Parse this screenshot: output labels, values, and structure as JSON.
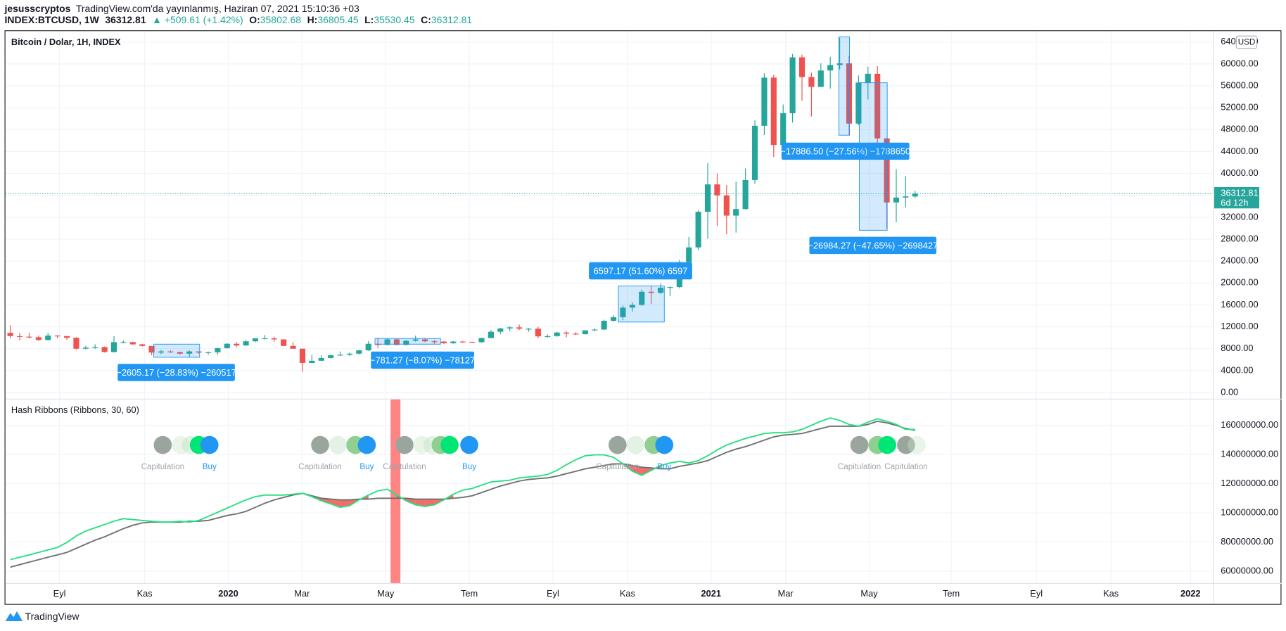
{
  "header": {
    "user": "jesusscryptos",
    "published": "TradingView.com'da yayınlanmış, Haziran 07, 2021 15:10:36 +03",
    "symbol": "INDEX:BTCUSD, 1W",
    "change": "▲ +509.61 (+1.42%)",
    "ohlc_labels": [
      "O:",
      "H:",
      "L:",
      "C:"
    ]
  },
  "footer": {
    "brand": "TradingView"
  },
  "chart_data": [
    {
      "type": "candlestick",
      "title": "Bitcoin / Dolar, 1H, INDEX",
      "currency": "USD",
      "countdown": "6d 12h",
      "up_color": "#26a69a",
      "down_color": "#ef5350",
      "grid": true,
      "open": [
        10900,
        10300,
        10200,
        10100,
        9600,
        10400,
        10300,
        10000,
        8000,
        8200,
        8300,
        7400,
        9200,
        9200,
        8800,
        8500,
        7300,
        7500,
        7400,
        7100,
        7500,
        7300,
        7350,
        8100,
        8900,
        8600,
        9350,
        9900,
        9900,
        9700,
        8500,
        8000,
        5400,
        5800,
        6300,
        6800,
        6900,
        7100,
        7700,
        8900,
        8700,
        9700,
        8700,
        9450,
        9700,
        9350,
        9300,
        9000,
        9300,
        9250,
        9200,
        9950,
        11100,
        11700,
        11900,
        11650,
        11650,
        10250,
        10300,
        10950,
        10750,
        10650,
        11350,
        11500,
        13100,
        13750,
        15500,
        16000,
        18400,
        18200,
        19150,
        19250,
        23800,
        26500,
        33000,
        38000,
        36000,
        32300,
        33500,
        38800,
        48700,
        57500,
        45200,
        51000,
        61200,
        57600,
        55800,
        58800,
        59800,
        60100,
        49100,
        56600,
        58200,
        46400,
        34700,
        35600,
        35802.68
      ],
      "high": [
        12300,
        10900,
        10900,
        10400,
        10900,
        10500,
        10300,
        10100,
        8500,
        8800,
        8400,
        10300,
        9500,
        9300,
        8900,
        8500,
        7800,
        7700,
        7400,
        7700,
        7500,
        7500,
        8200,
        9000,
        9200,
        9600,
        9900,
        10500,
        10200,
        9700,
        9200,
        8000,
        6900,
        6800,
        7000,
        7500,
        7300,
        7800,
        9400,
        10000,
        9900,
        9900,
        9600,
        10400,
        9900,
        9600,
        9400,
        9400,
        9400,
        9300,
        10000,
        11400,
        11800,
        12100,
        12400,
        11800,
        12000,
        10600,
        11100,
        11200,
        11000,
        11400,
        11700,
        13300,
        14100,
        15900,
        16500,
        18800,
        19500,
        19900,
        19400,
        24200,
        28400,
        33300,
        41900,
        40000,
        37900,
        38500,
        40900,
        49700,
        58300,
        58000,
        52600,
        61800,
        61700,
        58400,
        60100,
        61300,
        64800,
        61500,
        57900,
        59500,
        59600,
        46500,
        40800,
        39500,
        36805.45
      ],
      "low": [
        9900,
        9500,
        9900,
        9400,
        9500,
        9900,
        9600,
        7800,
        7900,
        8000,
        7300,
        7300,
        9000,
        8700,
        8400,
        6800,
        7000,
        7200,
        6900,
        6500,
        7100,
        6900,
        6900,
        8000,
        8300,
        8500,
        9200,
        9700,
        9300,
        8500,
        8000,
        3800,
        5300,
        5800,
        6200,
        6700,
        6700,
        6900,
        7600,
        8100,
        8600,
        8600,
        8600,
        9300,
        9200,
        8900,
        8900,
        8900,
        9100,
        9100,
        9100,
        9900,
        10700,
        11200,
        11400,
        11100,
        9900,
        10000,
        10200,
        10100,
        10500,
        10600,
        11200,
        11400,
        12900,
        13200,
        14800,
        15800,
        16200,
        18000,
        17600,
        19000,
        22000,
        26000,
        28100,
        30400,
        28900,
        29200,
        33400,
        38100,
        47000,
        43000,
        44900,
        49300,
        53300,
        50400,
        55800,
        55500,
        59000,
        47000,
        48800,
        53500,
        43800,
        30000,
        31100,
        33800,
        35530.45
      ],
      "close": [
        10300,
        10200,
        10100,
        9600,
        10400,
        10300,
        10000,
        8000,
        8200,
        8300,
        7400,
        9200,
        9200,
        8800,
        8500,
        7300,
        7500,
        7400,
        7100,
        7500,
        7300,
        7350,
        8100,
        8900,
        8600,
        9350,
        9900,
        9900,
        9700,
        8500,
        8000,
        5400,
        5800,
        6300,
        6800,
        6900,
        7100,
        7700,
        8900,
        8700,
        9700,
        8700,
        9450,
        9700,
        9350,
        9300,
        9000,
        9300,
        9250,
        9200,
        9950,
        11100,
        11700,
        11900,
        11650,
        11650,
        10250,
        10300,
        10950,
        10750,
        10650,
        11350,
        11500,
        13100,
        13750,
        15500,
        16000,
        18400,
        18200,
        19150,
        19250,
        23800,
        26500,
        33000,
        38000,
        36000,
        32300,
        33500,
        38800,
        48700,
        57500,
        45200,
        51000,
        61200,
        57600,
        55800,
        58800,
        59800,
        60100,
        49100,
        56600,
        58200,
        46400,
        34700,
        35600,
        35800,
        36312.81
      ],
      "xlim": [
        -0.52,
        127.65
      ],
      "xticks": [
        {
          "value": 5.22,
          "label": "Eyl"
        },
        {
          "value": 14.26,
          "label": "Kas"
        },
        {
          "value": 23.13,
          "label": "2020"
        },
        {
          "value": 30.96,
          "label": "Mar"
        },
        {
          "value": 39.83,
          "label": "May"
        },
        {
          "value": 48.7,
          "label": "Tem"
        },
        {
          "value": 57.57,
          "label": "Eyl"
        },
        {
          "value": 65.48,
          "label": "Kas"
        },
        {
          "value": 74.35,
          "label": "2021"
        },
        {
          "value": 82.26,
          "label": "Mar"
        },
        {
          "value": 91.13,
          "label": "May"
        },
        {
          "value": 99.83,
          "label": "Tem"
        },
        {
          "value": 108.87,
          "label": "Eyl"
        },
        {
          "value": 116.78,
          "label": "Kas"
        },
        {
          "value": 125.22,
          "label": "2022"
        }
      ],
      "ylim": [
        -1197,
        65985
      ],
      "yticks": [
        {
          "value": 0,
          "label": "0.00"
        },
        {
          "value": 4000,
          "label": "4000.00"
        },
        {
          "value": 8000,
          "label": "8000.00"
        },
        {
          "value": 12000,
          "label": "12000.00"
        },
        {
          "value": 16000,
          "label": "16000.00"
        },
        {
          "value": 20000,
          "label": "20000.00"
        },
        {
          "value": 24000,
          "label": "24000.00"
        },
        {
          "value": 28000,
          "label": "28000.00"
        },
        {
          "value": 32000,
          "label": "32000.00"
        },
        {
          "value": 36000,
          "label": "36000.00"
        },
        {
          "value": 40000,
          "label": "40000.00"
        },
        {
          "value": 44000,
          "label": "44000.00"
        },
        {
          "value": 48000,
          "label": "48000.00"
        },
        {
          "value": 52000,
          "label": "52000.00"
        },
        {
          "value": 56000,
          "label": "56000.00"
        },
        {
          "value": 60000,
          "label": "60000.00"
        },
        {
          "value": 64000,
          "label": "64000.00"
        }
      ],
      "annotations": [
        "−2605.17 (−28.83%) −260517",
        "−781.27 (−8.07%) −78127",
        "6597.17 (51.60%) 6597",
        "−17886.50 (−27.56%) −1788650",
        "−26984.27 (−47.65%) −2698427"
      ]
    },
    {
      "type": "line",
      "title": "Hash Ribbons (Ribbons, 30, 60)",
      "fill_color": "#ef5350",
      "grid": true,
      "series": [
        {
          "color": "#26e07f",
          "values": [
            67900000,
            69600000,
            71200000,
            72900000,
            74600000,
            76300000,
            79700000,
            84200000,
            87500000,
            89800000,
            92000000,
            94300000,
            96000000,
            95400000,
            94800000,
            94300000,
            93700000,
            93700000,
            94300000,
            93700000,
            94800000,
            97600000,
            100400000,
            103300000,
            106100000,
            108900000,
            111100000,
            112200000,
            112200000,
            112200000,
            112800000,
            113400000,
            111100000,
            108300000,
            106100000,
            103800000,
            104900000,
            108900000,
            112200000,
            115100000,
            116200000,
            112200000,
            108300000,
            105500000,
            104400000,
            105500000,
            108900000,
            112800000,
            115600000,
            116700000,
            119000000,
            121200000,
            121800000,
            122400000,
            124000000,
            124600000,
            125200000,
            126300000,
            129100000,
            133000000,
            136400000,
            139200000,
            139800000,
            139800000,
            138100000,
            133600000,
            128500000,
            125700000,
            129100000,
            132500000,
            134200000,
            135300000,
            134200000,
            135800000,
            139200000,
            143100000,
            146500000,
            148800000,
            151000000,
            152700000,
            154400000,
            154900000,
            154900000,
            155500000,
            157200000,
            160000000,
            162800000,
            165100000,
            163400000,
            160600000,
            159400000,
            162200000,
            164500000,
            162800000,
            160600000,
            157200000,
            157200000
          ]
        },
        {
          "color": "#707070",
          "values": [
            62800000,
            64500000,
            66200000,
            67900000,
            69600000,
            71200000,
            72900000,
            75700000,
            78500000,
            81300000,
            83600000,
            86400000,
            89200000,
            91500000,
            93100000,
            93700000,
            93700000,
            93700000,
            93700000,
            94300000,
            94300000,
            94800000,
            96500000,
            98200000,
            99300000,
            101000000,
            103800000,
            106600000,
            108900000,
            110600000,
            112200000,
            113400000,
            111700000,
            110000000,
            109400000,
            108900000,
            108900000,
            109400000,
            109400000,
            110000000,
            110000000,
            110000000,
            110000000,
            109400000,
            109400000,
            109400000,
            109400000,
            110000000,
            110600000,
            111700000,
            113900000,
            116200000,
            118400000,
            120100000,
            121800000,
            122900000,
            123500000,
            124000000,
            125200000,
            126900000,
            128500000,
            130200000,
            131300000,
            132500000,
            133600000,
            133600000,
            132500000,
            131300000,
            130800000,
            130200000,
            130200000,
            131900000,
            133000000,
            134200000,
            135800000,
            138700000,
            141500000,
            143700000,
            145400000,
            147600000,
            149900000,
            152100000,
            153300000,
            153800000,
            154400000,
            156100000,
            157800000,
            159400000,
            159400000,
            159400000,
            159400000,
            160600000,
            162800000,
            161700000,
            160000000,
            157800000,
            156600000
          ]
        }
      ],
      "ylim": [
        51600000,
        178000000
      ],
      "yticks": [
        {
          "value": 60000000,
          "label": "60000000.00"
        },
        {
          "value": 80000000,
          "label": "80000000.00"
        },
        {
          "value": 100000000,
          "label": "100000000.00"
        },
        {
          "value": 120000000,
          "label": "120000000.00"
        },
        {
          "value": 140000000,
          "label": "140000000.00"
        },
        {
          "value": 160000000,
          "label": "160000000.00"
        }
      ],
      "signals": [
        "Capitulation",
        "Buy",
        "Capitulation",
        "Buy",
        "Capitulation",
        "Buy",
        "Capitulation",
        "Buy",
        "Capitulation",
        "Capitulation"
      ]
    }
  ]
}
